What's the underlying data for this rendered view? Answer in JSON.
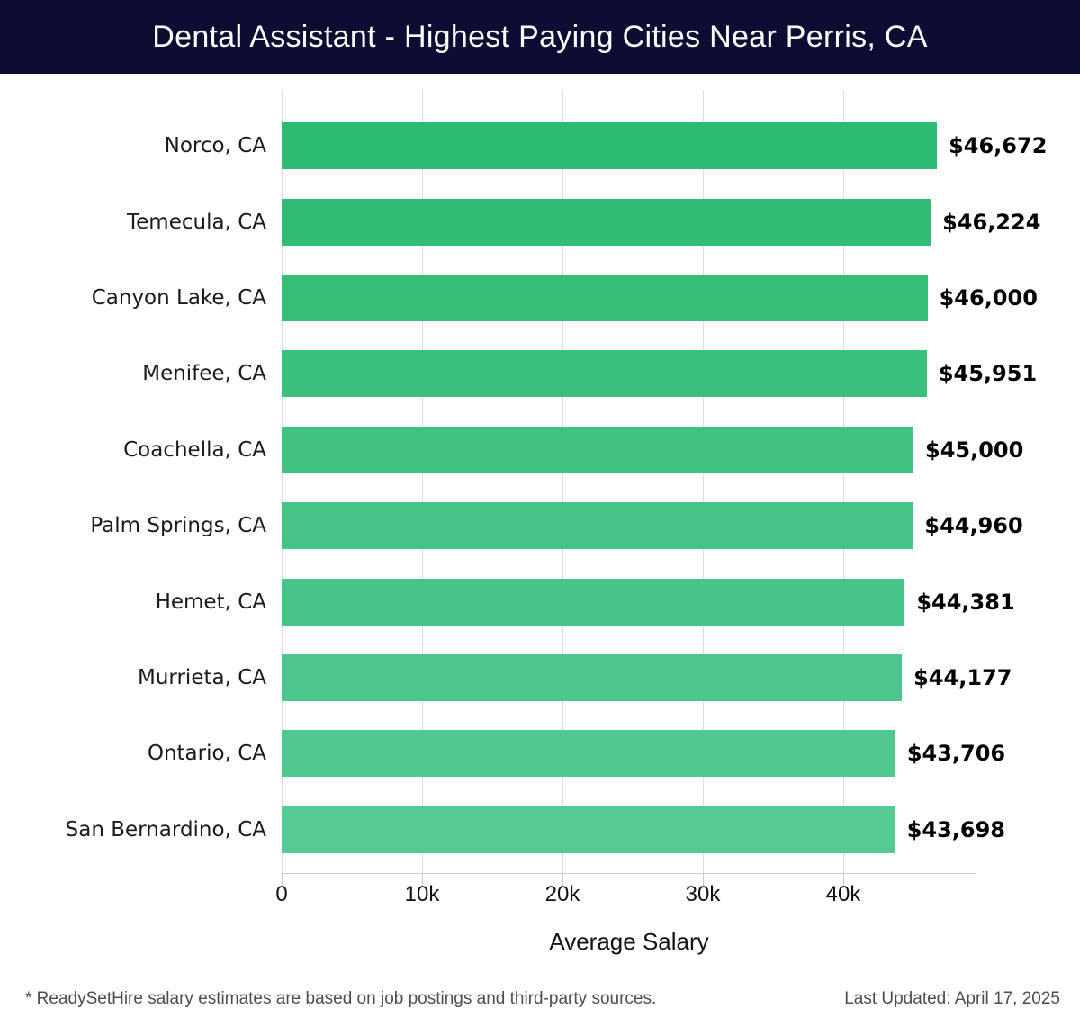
{
  "header": {
    "title": "Dental Assistant - Highest Paying Cities Near Perris, CA",
    "bg_color": "#0d0d33",
    "text_color": "#ffffff"
  },
  "chart_data": {
    "type": "bar",
    "orientation": "horizontal",
    "title": "Dental Assistant - Highest Paying Cities Near Perris, CA",
    "categories": [
      "Norco, CA",
      "Temecula, CA",
      "Canyon Lake, CA",
      "Menifee, CA",
      "Coachella, CA",
      "Palm Springs, CA",
      "Hemet, CA",
      "Murrieta, CA",
      "Ontario, CA",
      "San Bernardino, CA"
    ],
    "values": [
      46672,
      46224,
      46000,
      45951,
      45000,
      44960,
      44381,
      44177,
      43706,
      43698
    ],
    "value_labels": [
      "$46,672",
      "$46,224",
      "$46,000",
      "$45,951",
      "$45,000",
      "$44,960",
      "$44,381",
      "$44,177",
      "$43,706",
      "$43,698"
    ],
    "bar_colors": [
      "#2dba72",
      "#31bc76",
      "#36be79",
      "#3abf7d",
      "#3fc181",
      "#43c385",
      "#47c588",
      "#4cc68c",
      "#50c890",
      "#55ca93"
    ],
    "xlabel": "Average Salary",
    "x_ticks": [
      {
        "value": 0,
        "label": "0"
      },
      {
        "value": 10000,
        "label": "10k"
      },
      {
        "value": 20000,
        "label": "20k"
      },
      {
        "value": 30000,
        "label": "30k"
      },
      {
        "value": 40000,
        "label": "40k"
      }
    ],
    "xlim": [
      0,
      49500
    ],
    "grid": true,
    "gridline_color": "#dddddd",
    "legend": "none"
  },
  "footer": {
    "disclaimer": "* ReadySetHire salary estimates are based on job postings and third-party sources.",
    "last_updated": "Last Updated: April 17, 2025"
  }
}
